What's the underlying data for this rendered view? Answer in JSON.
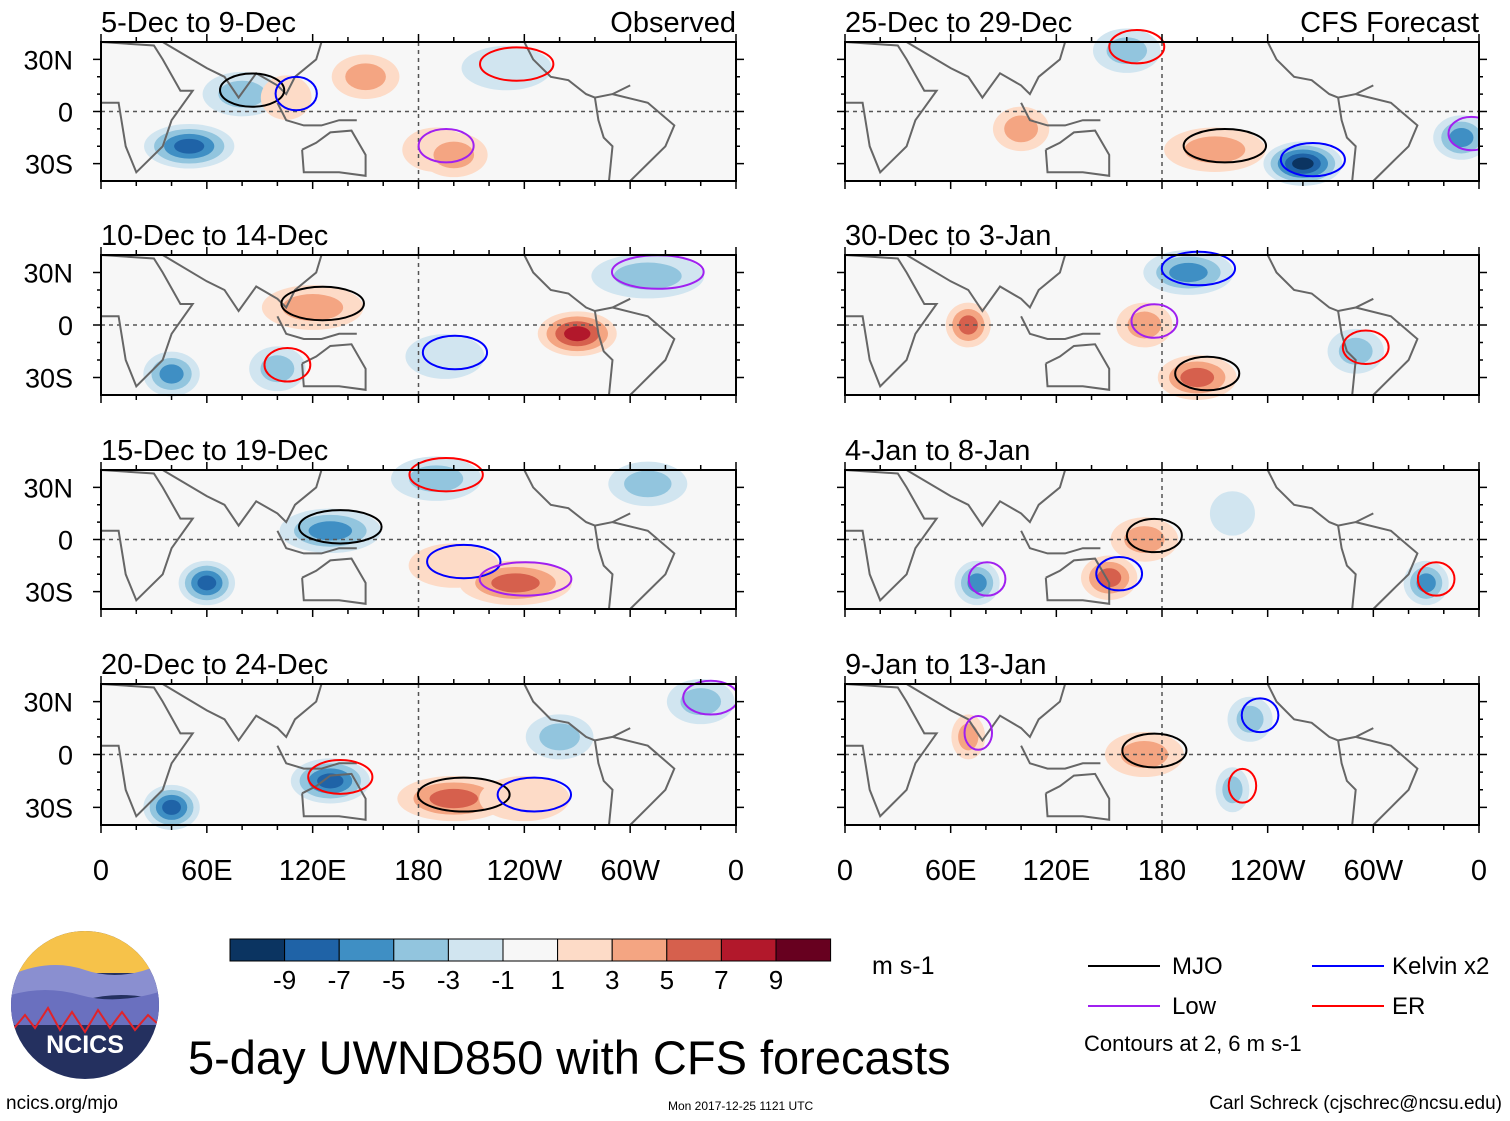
{
  "figure": {
    "title": "5-day UWND850 with CFS forecasts",
    "url": "ncics.org/mjo",
    "timestamp": "Mon 2017-12-25 1121 UTC",
    "author": "Carl Schreck (cjschrec@ncsu.edu)",
    "logo_text": "NCICS"
  },
  "colorbar": {
    "units": "m s-1",
    "tick_labels": [
      "-9",
      "-7",
      "-5",
      "-3",
      "-1",
      "1",
      "3",
      "5",
      "7",
      "9"
    ],
    "colors": [
      "#0b3461",
      "#1f63a7",
      "#3f8fc4",
      "#92c5de",
      "#d1e5f0",
      "#f7f7f7",
      "#fddbc7",
      "#f4a582",
      "#d6604d",
      "#b2182b",
      "#67001f"
    ]
  },
  "legend": {
    "items": [
      {
        "label": "MJO",
        "color": "#000000"
      },
      {
        "label": "Kelvin x2",
        "color": "#0000ff"
      },
      {
        "label": "Low",
        "color": "#a020f0"
      },
      {
        "label": "ER",
        "color": "#ff0000"
      }
    ],
    "note": "Contours at 2, 6 m s-1"
  },
  "chart_data": {
    "type": "heatmap",
    "variable": "850-hPa zonal wind anomaly (UWND850), 5-day means",
    "x_tick_labels": [
      "0",
      "60E",
      "120E",
      "180",
      "120W",
      "60W",
      "0"
    ],
    "y_tick_labels": [
      "30N",
      "0",
      "30S"
    ],
    "xlim": [
      0,
      360
    ],
    "ylim": [
      -40,
      40
    ],
    "panels": [
      {
        "period": "5-Dec to 9-Dec",
        "label": "Observed",
        "features": [
          [
            80,
            10,
            -3,
            -14
          ],
          [
            105,
            8,
            2,
            -9
          ],
          [
            190,
            -22,
            2,
            -12
          ],
          [
            230,
            25,
            -2,
            -16
          ],
          [
            50,
            -20,
            -8,
            -16
          ],
          [
            200,
            -25,
            3,
            -12
          ],
          [
            150,
            20,
            3,
            -12
          ]
        ]
      },
      {
        "period": "10-Dec to 14-Dec",
        "label": "",
        "features": [
          [
            120,
            10,
            4,
            -18
          ],
          [
            195,
            -18,
            -2,
            -14
          ],
          [
            310,
            28,
            -3,
            -20
          ],
          [
            100,
            -25,
            -3,
            -10
          ],
          [
            270,
            -5,
            7,
            -14
          ],
          [
            40,
            -28,
            -5,
            -10
          ]
        ]
      },
      {
        "period": "15-Dec to 19-Dec",
        "label": "",
        "features": [
          [
            130,
            5,
            -5,
            -18
          ],
          [
            200,
            -15,
            2,
            -16
          ],
          [
            235,
            -25,
            5,
            -20
          ],
          [
            190,
            35,
            -3,
            -16
          ],
          [
            310,
            32,
            -3,
            -14
          ],
          [
            60,
            -25,
            -8,
            -10
          ]
        ]
      },
      {
        "period": "20-Dec to 24-Dec",
        "label": "",
        "features": [
          [
            200,
            -25,
            6,
            -20
          ],
          [
            240,
            -25,
            1,
            -16
          ],
          [
            340,
            30,
            -4,
            -12
          ],
          [
            130,
            -15,
            -7,
            -14
          ],
          [
            260,
            10,
            -4,
            -12
          ],
          [
            40,
            -30,
            -8,
            -10
          ]
        ]
      },
      {
        "period": "25-Dec to 29-Dec",
        "label": "CFS Forecast",
        "features": [
          [
            210,
            -22,
            4,
            -18
          ],
          [
            260,
            -30,
            -9,
            -14
          ],
          [
            350,
            -15,
            -5,
            -10
          ],
          [
            160,
            35,
            -3,
            -12
          ],
          [
            100,
            -10,
            4,
            -10
          ]
        ]
      },
      {
        "period": "30-Dec to 3-Jan",
        "label": "",
        "features": [
          [
            200,
            -30,
            5,
            -14
          ],
          [
            195,
            30,
            -6,
            -16
          ],
          [
            170,
            0,
            3,
            -10
          ],
          [
            290,
            -15,
            -3,
            -10
          ],
          [
            70,
            0,
            6,
            -8
          ]
        ]
      },
      {
        "period": "4-Jan to 8-Jan",
        "label": "",
        "features": [
          [
            170,
            0,
            3,
            -12
          ],
          [
            150,
            -22,
            6,
            -10
          ],
          [
            75,
            -25,
            -5,
            -8
          ],
          [
            330,
            -25,
            -5,
            -8
          ],
          [
            220,
            15,
            -2,
            -8
          ]
        ]
      },
      {
        "period": "9-Jan to 13-Jan",
        "label": "",
        "features": [
          [
            170,
            0,
            4,
            -14
          ],
          [
            230,
            20,
            -3,
            -8
          ],
          [
            70,
            10,
            3,
            -6
          ],
          [
            220,
            -20,
            -3,
            -6
          ]
        ]
      }
    ]
  }
}
